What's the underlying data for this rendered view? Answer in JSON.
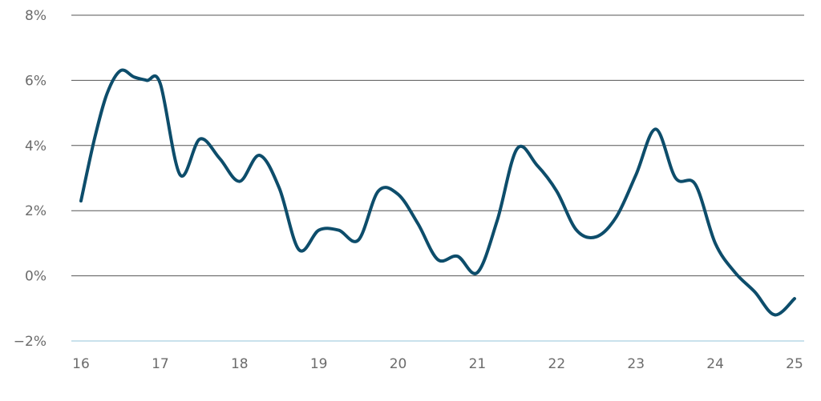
{
  "chart_data": {
    "type": "line",
    "title": "",
    "xlabel": "",
    "ylabel": "",
    "xlim": [
      16,
      25
    ],
    "ylim": [
      -2,
      8
    ],
    "x_ticks": [
      16,
      17,
      18,
      19,
      20,
      21,
      22,
      23,
      24,
      25
    ],
    "x_tick_labels": [
      "16",
      "17",
      "18",
      "19",
      "20",
      "21",
      "22",
      "23",
      "24",
      "25"
    ],
    "y_ticks": [
      -2,
      0,
      2,
      4,
      6,
      8
    ],
    "y_tick_labels": [
      "−2%",
      "0%",
      "2%",
      "4%",
      "6%",
      "8%"
    ],
    "grid": "horizontal",
    "legend": "none",
    "colors": {
      "line": "#0d4d6b",
      "grid": "#555555",
      "baseline": "#a9cfe0"
    },
    "series": [
      {
        "x": [
          16.0,
          16.17,
          16.33,
          16.5,
          16.67,
          16.83,
          17.0,
          17.25,
          17.5,
          17.75,
          18.0,
          18.25,
          18.5,
          18.75,
          19.0,
          19.25,
          19.5,
          19.75,
          20.0,
          20.25,
          20.5,
          20.75,
          21.0,
          21.25,
          21.5,
          21.75,
          22.0,
          22.25,
          22.5,
          22.75,
          23.0,
          23.25,
          23.5,
          23.75,
          24.0,
          24.25,
          24.5,
          24.75,
          25.0
        ],
        "y": [
          2.3,
          4.2,
          5.6,
          6.3,
          6.1,
          6.0,
          5.9,
          3.1,
          4.2,
          3.6,
          2.9,
          3.7,
          2.7,
          0.8,
          1.4,
          1.4,
          1.1,
          2.6,
          2.5,
          1.6,
          0.5,
          0.6,
          0.1,
          1.7,
          3.9,
          3.4,
          2.6,
          1.4,
          1.2,
          1.8,
          3.1,
          4.5,
          3.0,
          2.8,
          1.0,
          0.1,
          -0.5,
          -1.2,
          -0.7
        ]
      }
    ]
  }
}
